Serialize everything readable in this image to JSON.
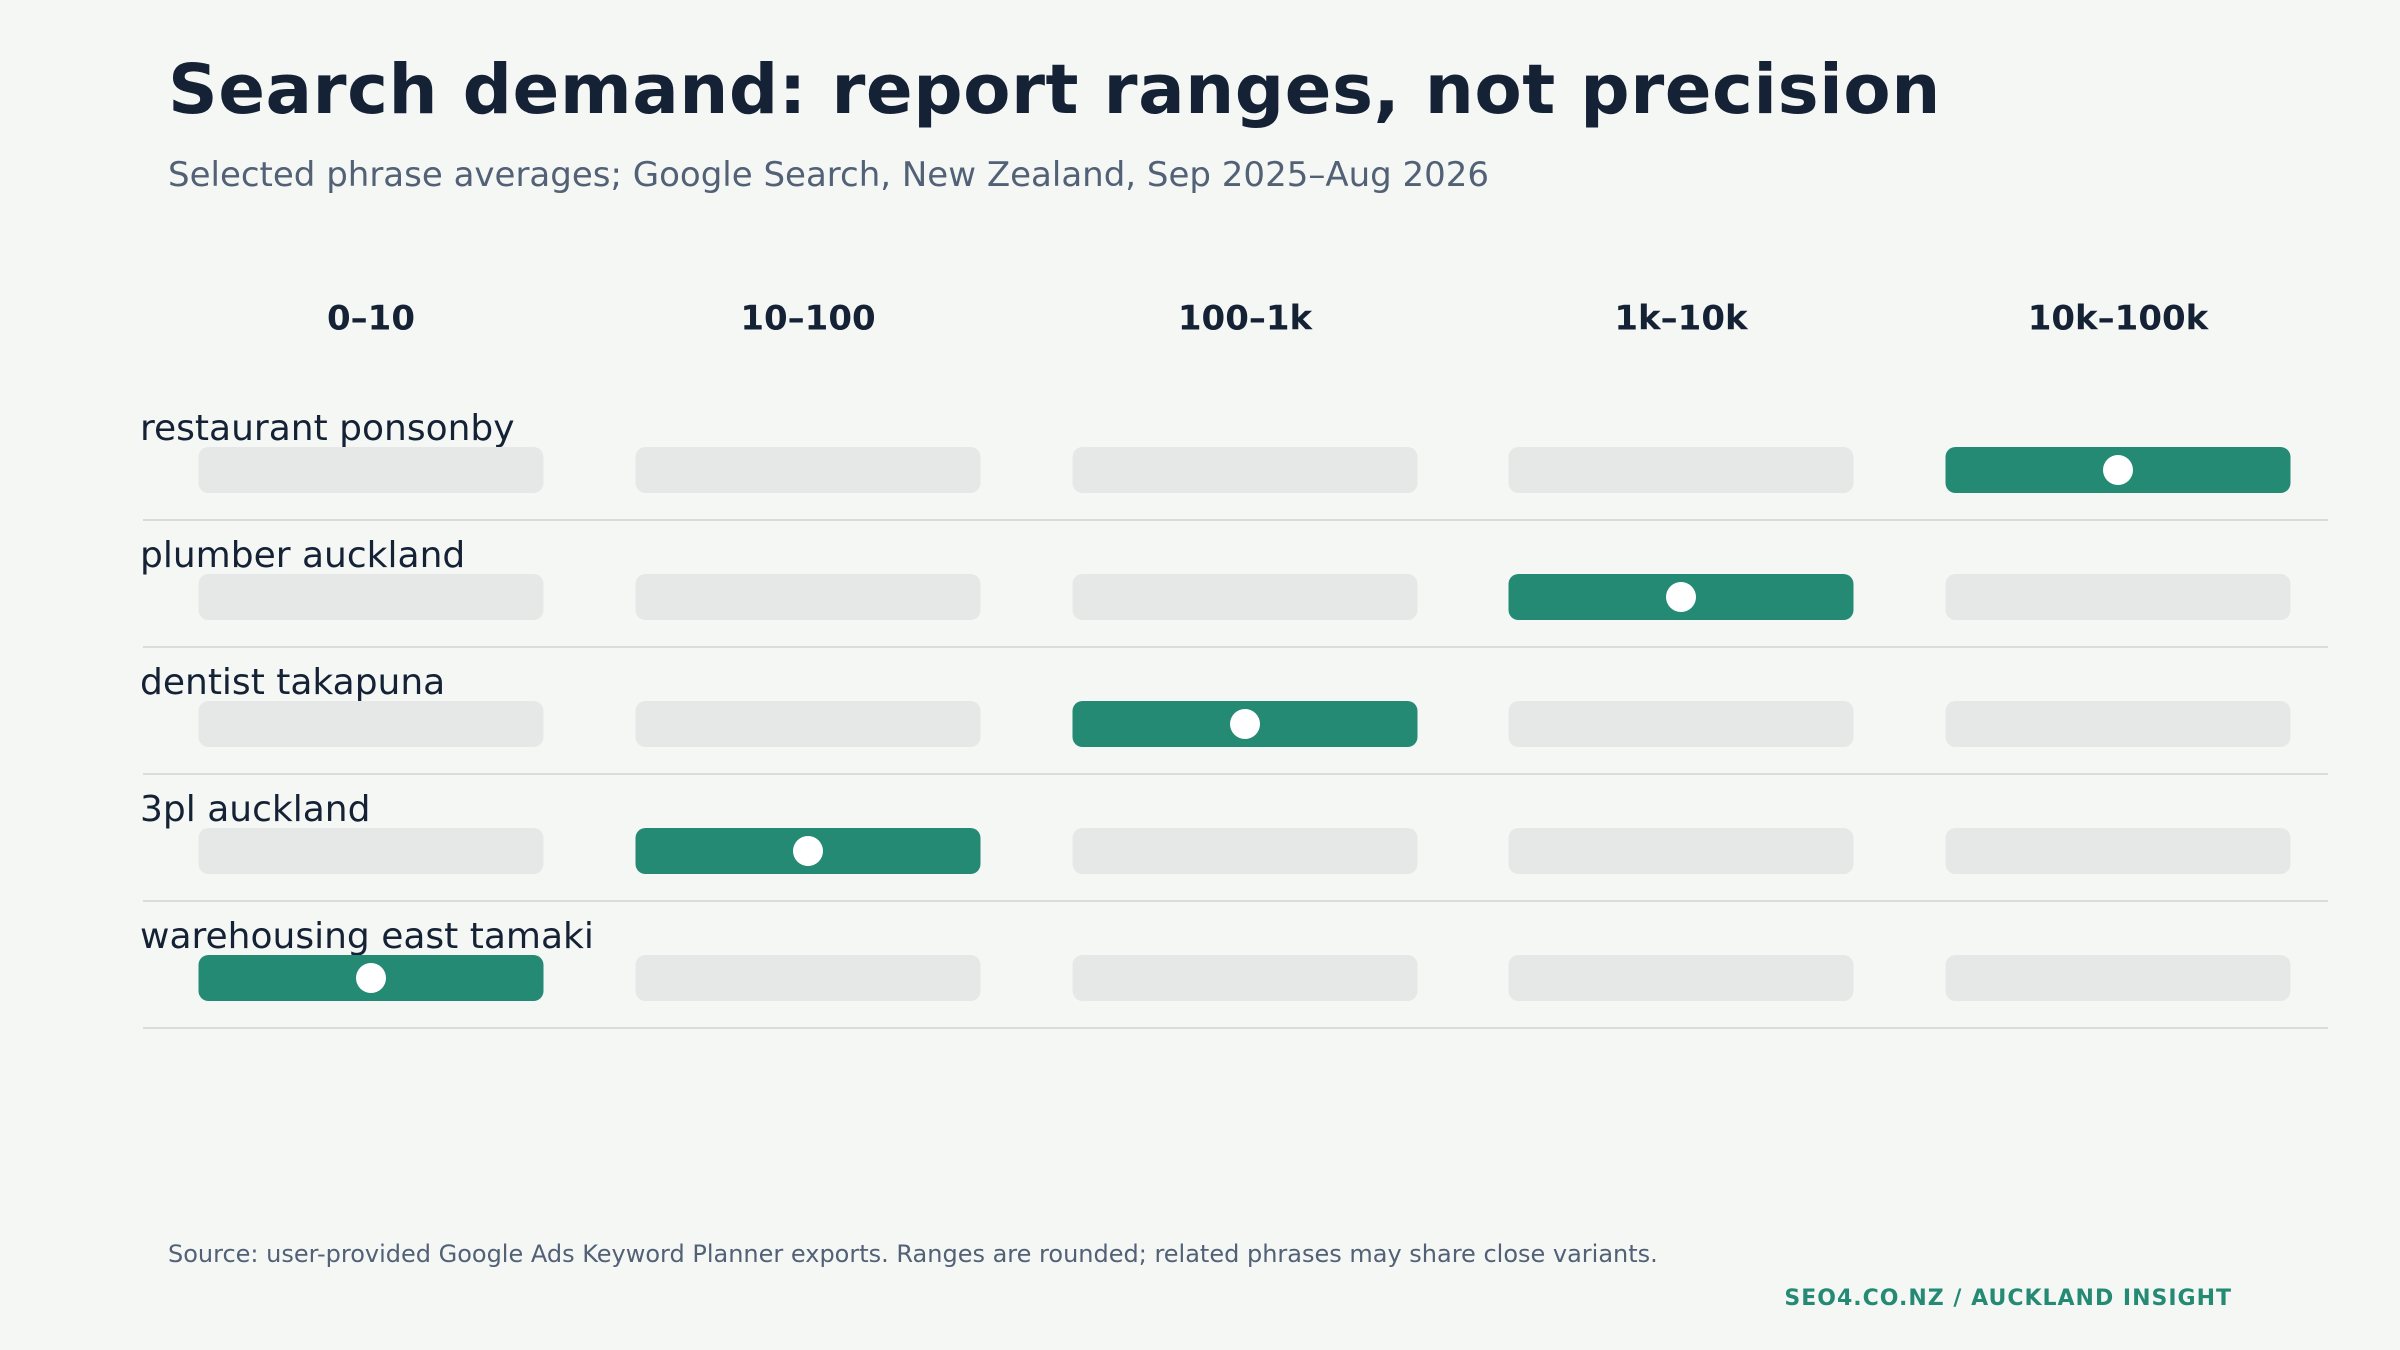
{
  "title": "Search demand: report ranges, not precision",
  "subtitle": "Selected phrase averages; Google Search, New Zealand, Sep 2025–Aug 2026",
  "source": "Source: user-provided Google Ads Keyword Planner exports. Ranges are rounded; related phrases may share close variants.",
  "brand": "SEO4.CO.NZ  /  AUCKLAND INSIGHT",
  "colors": {
    "highlight": "#258a74",
    "empty": "#e5e8e7",
    "marker": "#ffffff",
    "divider": "#d9dcdb",
    "text_dark": "#152235",
    "text_muted": "#526176"
  },
  "chart_data": {
    "type": "table",
    "categories": [
      "0–10",
      "10–100",
      "100–1k",
      "1k–10k",
      "10k–100k"
    ],
    "rows": [
      {
        "label": "restaurant ponsonby",
        "range": "10k–100k"
      },
      {
        "label": "plumber auckland",
        "range": "1k–10k"
      },
      {
        "label": "dentist takapuna",
        "range": "100–1k"
      },
      {
        "label": "3pl auckland",
        "range": "10–100"
      },
      {
        "label": "warehousing east tamaki",
        "range": "0–10"
      }
    ]
  }
}
